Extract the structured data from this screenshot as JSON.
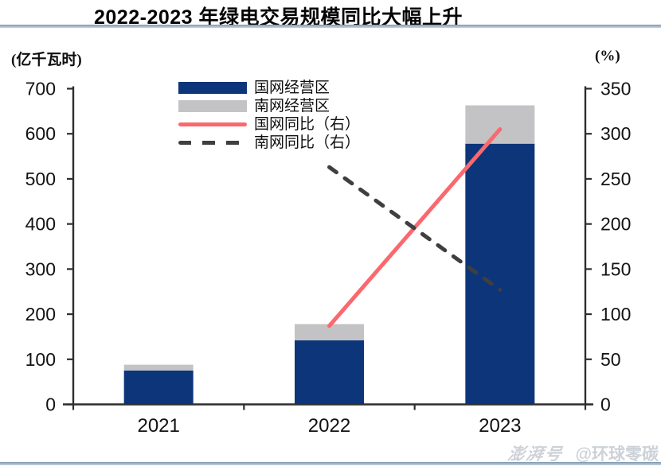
{
  "title": "2022-2023 年绿电交易规模同比大幅上升",
  "left_axis": {
    "unit": "(亿千瓦时)",
    "ticks": [
      700,
      600,
      500,
      400,
      300,
      200,
      100,
      0
    ]
  },
  "right_axis": {
    "unit": "(%)",
    "ticks": [
      350,
      300,
      250,
      200,
      150,
      100,
      50,
      0
    ]
  },
  "chart_data": {
    "type": "combo-stacked-bar-line",
    "categories": [
      "2021",
      "2022",
      "2023"
    ],
    "bar_series": [
      {
        "name": "国网经营区",
        "color": "#0d357a",
        "axis": "left",
        "values": [
          75,
          142,
          578
        ]
      },
      {
        "name": "南网经营区",
        "color": "#c3c3c5",
        "axis": "left",
        "values": [
          13,
          36,
          85
        ]
      }
    ],
    "line_series": [
      {
        "name": "国网同比（右）",
        "color": "#fa696e",
        "style": "solid",
        "axis": "right",
        "values": [
          null,
          87,
          305
        ]
      },
      {
        "name": "南网同比（右）",
        "color": "#3f3f41",
        "style": "dashed",
        "axis": "right",
        "values": [
          null,
          263,
          127
        ]
      }
    ],
    "left_ylim": [
      0,
      700
    ],
    "right_ylim": [
      0,
      350
    ],
    "grid": false,
    "legend_position": "top-left-inside",
    "stacked": true
  },
  "style_colors": {
    "axis": "#2e2e2e",
    "divider": "#8aa3b8"
  },
  "watermark": {
    "brand": "澎湃号",
    "handle": "@环球零碳"
  }
}
